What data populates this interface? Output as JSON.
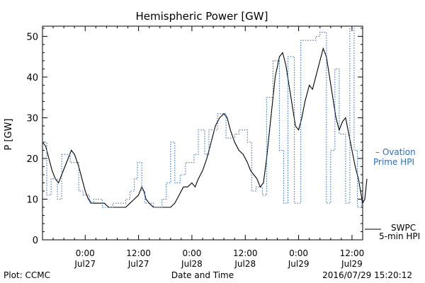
{
  "chart_data": {
    "type": "line",
    "title": "Hemispheric Power [GW]",
    "ylabel": "P [GW]",
    "xlabel": "Date and Time",
    "ylim": [
      0,
      52.5
    ],
    "yticks": [
      0,
      10,
      20,
      30,
      40,
      50
    ],
    "xlim": [
      -4,
      26
    ],
    "grid": false,
    "xticks": [
      {
        "x": 0,
        "time": "0:00",
        "date": "Jul27"
      },
      {
        "x": 5,
        "time": "12:00",
        "date": "Jul27"
      },
      {
        "x": 10,
        "time": "0:00",
        "date": "Jul28"
      },
      {
        "x": 15,
        "time": "12:00",
        "date": "Jul28"
      },
      {
        "x": 20,
        "time": "0:00",
        "date": "Jul29"
      },
      {
        "x": 25,
        "time": "12:00",
        "date": "Jul29"
      }
    ],
    "series": [
      {
        "name": "SWPC 5-min HPI",
        "color": "#000000",
        "style": "solid",
        "points": [
          [
            -4.0,
            24
          ],
          [
            -3.7,
            23
          ],
          [
            -3.4,
            20
          ],
          [
            -3.1,
            17
          ],
          [
            -2.8,
            15
          ],
          [
            -2.5,
            14
          ],
          [
            -2.2,
            16
          ],
          [
            -1.9,
            18
          ],
          [
            -1.6,
            20
          ],
          [
            -1.3,
            22
          ],
          [
            -1.0,
            21
          ],
          [
            -0.6,
            18
          ],
          [
            -0.3,
            15
          ],
          [
            0.0,
            12
          ],
          [
            0.3,
            10
          ],
          [
            0.6,
            9
          ],
          [
            1.0,
            9
          ],
          [
            1.4,
            9
          ],
          [
            1.8,
            9
          ],
          [
            2.2,
            8
          ],
          [
            2.6,
            8
          ],
          [
            3.0,
            8
          ],
          [
            3.4,
            8
          ],
          [
            3.8,
            8
          ],
          [
            4.2,
            9
          ],
          [
            4.6,
            10
          ],
          [
            5.0,
            11
          ],
          [
            5.3,
            13
          ],
          [
            5.5,
            12
          ],
          [
            5.7,
            10
          ],
          [
            6.0,
            9
          ],
          [
            6.4,
            8
          ],
          [
            6.8,
            8
          ],
          [
            7.2,
            8
          ],
          [
            7.6,
            8
          ],
          [
            8.0,
            8
          ],
          [
            8.4,
            9
          ],
          [
            8.8,
            11
          ],
          [
            9.2,
            13
          ],
          [
            9.6,
            13
          ],
          [
            10.0,
            14
          ],
          [
            10.3,
            13
          ],
          [
            10.6,
            15
          ],
          [
            11.0,
            17
          ],
          [
            11.4,
            20
          ],
          [
            11.8,
            24
          ],
          [
            12.2,
            28
          ],
          [
            12.6,
            30
          ],
          [
            13.0,
            31
          ],
          [
            13.3,
            30
          ],
          [
            13.6,
            27
          ],
          [
            14.0,
            24
          ],
          [
            14.4,
            22
          ],
          [
            14.8,
            21
          ],
          [
            15.2,
            19
          ],
          [
            15.5,
            17
          ],
          [
            15.8,
            16
          ],
          [
            16.1,
            15
          ],
          [
            16.4,
            13
          ],
          [
            16.7,
            14
          ],
          [
            17.0,
            20
          ],
          [
            17.4,
            30
          ],
          [
            17.8,
            40
          ],
          [
            18.2,
            45
          ],
          [
            18.5,
            46
          ],
          [
            18.8,
            43
          ],
          [
            19.1,
            38
          ],
          [
            19.4,
            33
          ],
          [
            19.7,
            28
          ],
          [
            20.0,
            27
          ],
          [
            20.3,
            30
          ],
          [
            20.6,
            34
          ],
          [
            21.0,
            38
          ],
          [
            21.3,
            37
          ],
          [
            21.6,
            40
          ],
          [
            22.0,
            44
          ],
          [
            22.3,
            47
          ],
          [
            22.6,
            45
          ],
          [
            22.9,
            40
          ],
          [
            23.2,
            35
          ],
          [
            23.5,
            30
          ],
          [
            23.8,
            27
          ],
          [
            24.1,
            29
          ],
          [
            24.4,
            30
          ],
          [
            24.7,
            26
          ],
          [
            25.0,
            22
          ],
          [
            25.3,
            18
          ],
          [
            25.6,
            15
          ],
          [
            25.8,
            12
          ],
          [
            26.0,
            9
          ],
          [
            26.2,
            10
          ],
          [
            26.4,
            15
          ]
        ]
      },
      {
        "name": "Ovation Prime HPI",
        "color": "#2f6fbf",
        "style": "dotted",
        "points": [
          [
            -4.0,
            24
          ],
          [
            -3.6,
            24
          ],
          [
            -3.6,
            11
          ],
          [
            -3.2,
            11
          ],
          [
            -3.2,
            15
          ],
          [
            -2.6,
            15
          ],
          [
            -2.6,
            10
          ],
          [
            -2.2,
            10
          ],
          [
            -2.2,
            21
          ],
          [
            -1.4,
            21
          ],
          [
            -1.4,
            19
          ],
          [
            -0.6,
            19
          ],
          [
            -0.6,
            12
          ],
          [
            -0.2,
            12
          ],
          [
            -0.2,
            11
          ],
          [
            0.4,
            11
          ],
          [
            0.4,
            9
          ],
          [
            0.8,
            9
          ],
          [
            0.8,
            10
          ],
          [
            1.6,
            10
          ],
          [
            1.6,
            8
          ],
          [
            2.6,
            8
          ],
          [
            2.6,
            9
          ],
          [
            3.8,
            9
          ],
          [
            3.8,
            10
          ],
          [
            4.2,
            10
          ],
          [
            4.2,
            12
          ],
          [
            4.6,
            12
          ],
          [
            4.6,
            15
          ],
          [
            4.9,
            15
          ],
          [
            4.9,
            19
          ],
          [
            5.3,
            19
          ],
          [
            5.3,
            12
          ],
          [
            5.6,
            12
          ],
          [
            5.6,
            9
          ],
          [
            6.4,
            9
          ],
          [
            6.4,
            8
          ],
          [
            7.2,
            8
          ],
          [
            7.2,
            10
          ],
          [
            7.6,
            10
          ],
          [
            7.6,
            14
          ],
          [
            8.0,
            14
          ],
          [
            8.0,
            24
          ],
          [
            8.4,
            24
          ],
          [
            8.4,
            14
          ],
          [
            8.9,
            14
          ],
          [
            8.9,
            16
          ],
          [
            9.4,
            16
          ],
          [
            9.4,
            19
          ],
          [
            10.2,
            19
          ],
          [
            10.2,
            21
          ],
          [
            10.6,
            21
          ],
          [
            10.6,
            27
          ],
          [
            11.2,
            27
          ],
          [
            11.2,
            21
          ],
          [
            11.6,
            21
          ],
          [
            11.6,
            27
          ],
          [
            12.4,
            27
          ],
          [
            12.4,
            31
          ],
          [
            13.2,
            31
          ],
          [
            13.2,
            25
          ],
          [
            14.0,
            25
          ],
          [
            14.0,
            26
          ],
          [
            14.4,
            26
          ],
          [
            14.4,
            27
          ],
          [
            15.2,
            27
          ],
          [
            15.2,
            24
          ],
          [
            15.6,
            24
          ],
          [
            15.6,
            12
          ],
          [
            16.0,
            12
          ],
          [
            16.0,
            13
          ],
          [
            16.6,
            13
          ],
          [
            16.6,
            11
          ],
          [
            17.0,
            11
          ],
          [
            17.0,
            35
          ],
          [
            17.6,
            35
          ],
          [
            17.6,
            44
          ],
          [
            18.2,
            44
          ],
          [
            18.2,
            22
          ],
          [
            18.6,
            22
          ],
          [
            18.6,
            9
          ],
          [
            19.0,
            9
          ],
          [
            19.0,
            45
          ],
          [
            19.6,
            45
          ],
          [
            19.6,
            9
          ],
          [
            20.2,
            9
          ],
          [
            20.2,
            49
          ],
          [
            21.6,
            49
          ],
          [
            21.6,
            50
          ],
          [
            22.0,
            50
          ],
          [
            22.0,
            51
          ],
          [
            22.6,
            51
          ],
          [
            22.6,
            9
          ],
          [
            23.0,
            9
          ],
          [
            23.0,
            22
          ],
          [
            23.4,
            22
          ],
          [
            23.4,
            42
          ],
          [
            23.8,
            42
          ],
          [
            23.8,
            26
          ],
          [
            24.4,
            26
          ],
          [
            24.4,
            9
          ],
          [
            24.8,
            9
          ],
          [
            24.8,
            52
          ],
          [
            25.2,
            52
          ],
          [
            25.2,
            22
          ],
          [
            25.5,
            22
          ],
          [
            25.5,
            8
          ],
          [
            25.9,
            8
          ],
          [
            25.9,
            10
          ],
          [
            26.4,
            10
          ]
        ]
      }
    ],
    "legend": {
      "placement": "right",
      "ovation": {
        "dash": "–",
        "line1": "Ovation",
        "line2": "Prime HPI",
        "y": 21.5
      },
      "swpc": {
        "line1": "SWPC",
        "line2": "5-min HPI",
        "y": 2.5
      }
    },
    "footer": {
      "left": "Plot: CCMC",
      "right": "2016/07/29 15:20:12"
    }
  }
}
